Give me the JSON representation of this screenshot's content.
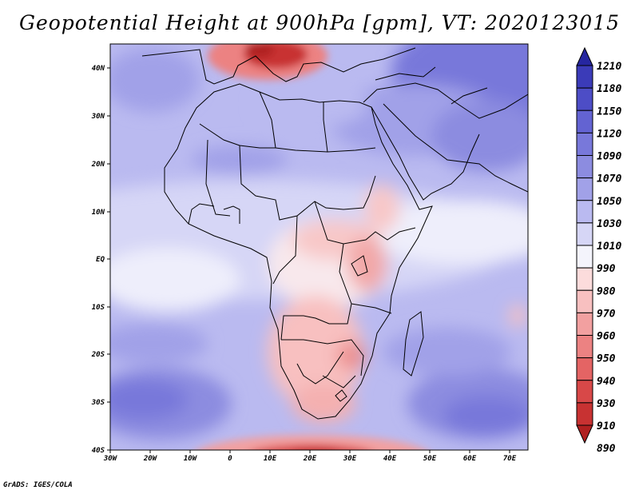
{
  "title": "Geopotential Height at 900hPa [gpm], VT: 2020123015",
  "credit": "GrADS: IGES/COLA",
  "map": {
    "projection": "latlon",
    "lon_range": [
      -30,
      75
    ],
    "lat_range": [
      -40,
      45
    ],
    "lon_ticks": [
      "30W",
      "20W",
      "10W",
      "0",
      "10E",
      "20E",
      "30E",
      "40E",
      "50E",
      "60E",
      "70E"
    ],
    "lat_ticks": [
      "40N",
      "30N",
      "20N",
      "10N",
      "EQ",
      "10S",
      "20S",
      "30S",
      "40S"
    ]
  },
  "colorbar": {
    "levels": [
      "1210",
      "1180",
      "1150",
      "1120",
      "1090",
      "1070",
      "1050",
      "1030",
      "1010",
      "990",
      "980",
      "970",
      "960",
      "950",
      "940",
      "930",
      "910",
      "890"
    ],
    "colors": [
      "#2626a0",
      "#3b3bb8",
      "#4d4dc6",
      "#6363d2",
      "#7878da",
      "#8c8ce0",
      "#a1a1e8",
      "#babaf0",
      "#d6d6f6",
      "#f4f4fc",
      "#fcdcdc",
      "#f8c0c0",
      "#f2a0a0",
      "#ec8282",
      "#e46464",
      "#d84848",
      "#c83232",
      "#b02020"
    ]
  }
}
